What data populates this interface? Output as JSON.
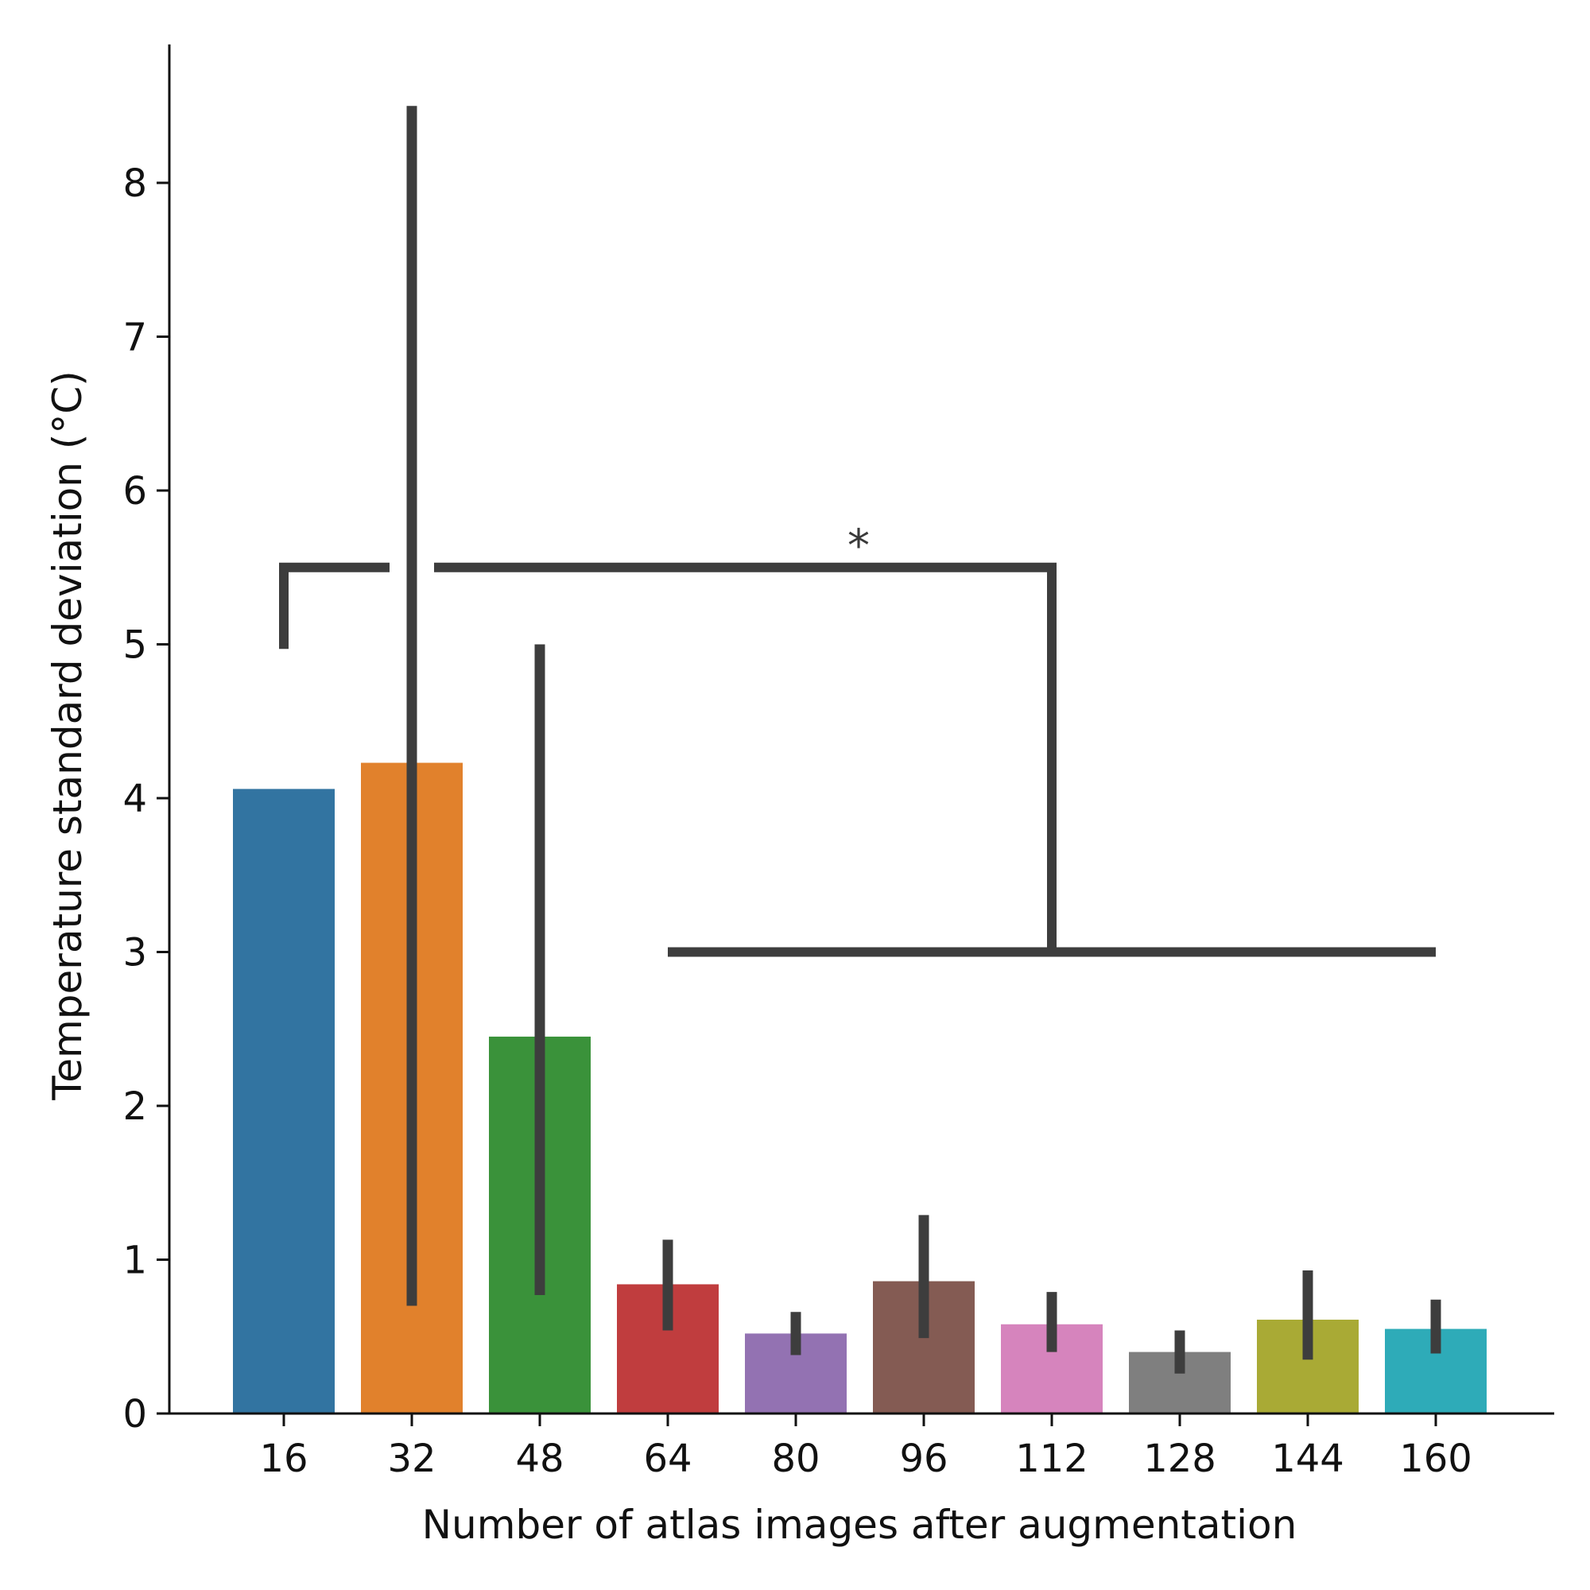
{
  "chart_data": {
    "type": "bar",
    "title": "",
    "xlabel": "Number of atlas images after augmentation",
    "ylabel": "Temperature standard deviation (°C)",
    "ylim": [
      0,
      8.9
    ],
    "yticks": [
      0,
      1,
      2,
      3,
      4,
      5,
      6,
      7,
      8
    ],
    "categories": [
      "16",
      "32",
      "48",
      "64",
      "80",
      "96",
      "112",
      "128",
      "144",
      "160"
    ],
    "values": [
      4.06,
      4.23,
      2.45,
      0.84,
      0.52,
      0.86,
      0.58,
      0.4,
      0.61,
      0.55
    ],
    "error_low": [
      4.06,
      0.7,
      0.77,
      0.54,
      0.38,
      0.49,
      0.4,
      0.26,
      0.35,
      0.39
    ],
    "error_high": [
      4.06,
      8.5,
      5.0,
      1.13,
      0.66,
      1.29,
      0.79,
      0.54,
      0.93,
      0.74
    ],
    "colors": [
      "#3274a1",
      "#e1812c",
      "#3a923a",
      "#c03d3e",
      "#9372b2",
      "#845b53",
      "#d684bd",
      "#7f7f7f",
      "#a9aa35",
      "#2eabb8"
    ],
    "error_color": "#3d3d3d",
    "grid": false,
    "legend": "none",
    "annotations": [
      {
        "text": "*",
        "type": "significance-bracket",
        "from_category": "16",
        "to_group": [
          "64",
          "80",
          "96",
          "112",
          "128",
          "144",
          "160"
        ],
        "left_leg_bottom": 4.97,
        "bracket_top": 5.5,
        "right_leg_bottom": 3.0,
        "group_line_y": 3.0,
        "label_y": 5.75
      }
    ]
  }
}
